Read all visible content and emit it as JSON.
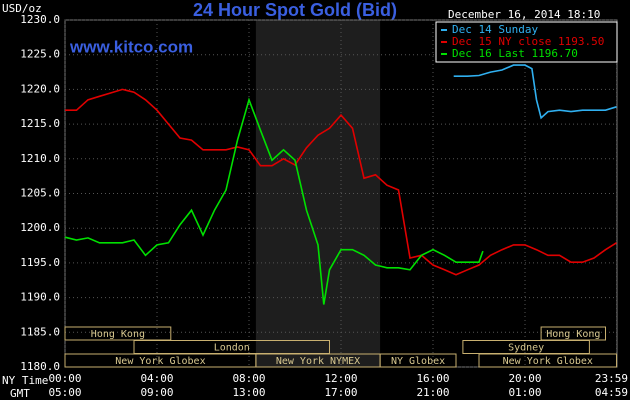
{
  "chart_data": {
    "type": "line",
    "title": "24 Hour Spot Gold (Bid)",
    "subtitle": "www.kitco.com",
    "timestamp": "December 16, 2014 18:10",
    "y_label": "USD/oz",
    "x_label": "NY Time",
    "x2_label": "GMT",
    "grid": true,
    "legend": "top-right",
    "xlim": [
      0,
      24
    ],
    "ylim": [
      1180,
      1230
    ],
    "yticks": [
      {
        "value": 1180,
        "label": "1180.0"
      },
      {
        "value": 1185,
        "label": "1185.0"
      },
      {
        "value": 1190,
        "label": "1190.0"
      },
      {
        "value": 1195,
        "label": "1195.0"
      },
      {
        "value": 1200,
        "label": "1200.0"
      },
      {
        "value": 1205,
        "label": "1205.0"
      },
      {
        "value": 1210,
        "label": "1210.0"
      },
      {
        "value": 1215,
        "label": "1215.0"
      },
      {
        "value": 1220,
        "label": "1220.0"
      },
      {
        "value": 1225,
        "label": "1225.0"
      },
      {
        "value": 1230,
        "label": "1230.0"
      }
    ],
    "xticks": [
      {
        "value": 0,
        "label": "00:00"
      },
      {
        "value": 4,
        "label": "04:00"
      },
      {
        "value": 8,
        "label": "08:00"
      },
      {
        "value": 12,
        "label": "12:00"
      },
      {
        "value": 16,
        "label": "16:00"
      },
      {
        "value": 20,
        "label": "20:00"
      },
      {
        "value": 23.98,
        "label": "23:59"
      }
    ],
    "x2ticks": [
      {
        "value": 0,
        "label": "05:00"
      },
      {
        "value": 4,
        "label": "09:00"
      },
      {
        "value": 8,
        "label": "13:00"
      },
      {
        "value": 12,
        "label": "17:00"
      },
      {
        "value": 16,
        "label": "21:00"
      },
      {
        "value": 20,
        "label": "01:00"
      },
      {
        "value": 23.98,
        "label": "04:59"
      }
    ],
    "sessions": [
      {
        "label": "Hong Kong",
        "row": 0,
        "start": 0,
        "end": 4.6
      },
      {
        "label": "Hong Kong",
        "row": 0,
        "start": 20.7,
        "end": 23.5
      },
      {
        "label": "London",
        "row": 1,
        "start": 3,
        "end": 11.5
      },
      {
        "label": "Sydney",
        "row": 1,
        "start": 17.3,
        "end": 22.8
      },
      {
        "label": "New York Globex",
        "row": 2,
        "start": 0,
        "end": 8.3
      },
      {
        "label": "New York NYMEX",
        "row": 2,
        "start": 8.3,
        "end": 13.7,
        "shade": true
      },
      {
        "label": "NY Globex",
        "row": 2,
        "start": 13.7,
        "end": 17
      },
      {
        "label": "New York Globex",
        "row": 2,
        "start": 18,
        "end": 23.98
      }
    ],
    "series": [
      {
        "name": "Dec 14 Sunday",
        "color": "#30b0f0",
        "x": [
          16.9,
          17.5,
          18,
          18.5,
          19,
          19.5,
          20,
          20.3,
          20.5,
          20.7,
          21,
          21.5,
          22,
          22.5,
          23,
          23.5,
          23.98
        ],
        "values": [
          1221.9,
          1221.9,
          1222,
          1222.5,
          1222.8,
          1223.5,
          1223.5,
          1223,
          1218.5,
          1215.9,
          1216.8,
          1217,
          1216.8,
          1217,
          1217,
          1217,
          1217.5
        ]
      },
      {
        "name": "Dec 15 NY close 1193.50",
        "color": "#e00000",
        "x": [
          0,
          0.5,
          1,
          1.5,
          2,
          2.5,
          3,
          3.5,
          4,
          4.5,
          5,
          5.5,
          6,
          6.5,
          7,
          7.5,
          8,
          8.5,
          9,
          9.5,
          10,
          10.5,
          11,
          11.5,
          12,
          12.5,
          13,
          13.5,
          14,
          14.5,
          15,
          15.5,
          16,
          16.5,
          17,
          17.5,
          18,
          18.5,
          19,
          19.5,
          20,
          20.5,
          21,
          21.5,
          22,
          22.5,
          23,
          23.5,
          23.98
        ],
        "values": [
          1217,
          1217,
          1218.5,
          1219,
          1219.5,
          1220,
          1219.6,
          1218.5,
          1217,
          1215,
          1213,
          1212.7,
          1211.3,
          1211.3,
          1211.3,
          1211.7,
          1211.3,
          1209,
          1209,
          1210,
          1209.1,
          1211.6,
          1213.4,
          1214.4,
          1216.3,
          1214.4,
          1207.2,
          1207.7,
          1206.2,
          1205.5,
          1195.7,
          1196.1,
          1194.7,
          1194,
          1193.3,
          1194,
          1194.7,
          1196.1,
          1196.9,
          1197.6,
          1197.6,
          1196.9,
          1196.1,
          1196.1,
          1195.1,
          1195.1,
          1195.7,
          1196.9,
          1197.9
        ]
      },
      {
        "name": "Dec 16 Last 1196.70",
        "color": "#00e000",
        "x": [
          0,
          0.5,
          1,
          1.5,
          2,
          2.5,
          3,
          3.5,
          4,
          4.5,
          5,
          5.5,
          6,
          6.5,
          7,
          7.5,
          8,
          8.5,
          9,
          9.5,
          10,
          10.5,
          11,
          11.25,
          11.5,
          12,
          12.5,
          13,
          13.5,
          14,
          14.5,
          15,
          15.5,
          16,
          16.5,
          17,
          17.5,
          18,
          18.17
        ],
        "values": [
          1198.7,
          1198.3,
          1198.6,
          1197.9,
          1197.9,
          1197.9,
          1198.3,
          1196.1,
          1197.6,
          1197.9,
          1200.5,
          1202.6,
          1199,
          1202.6,
          1205.5,
          1212.7,
          1218.5,
          1214.1,
          1209.8,
          1211.3,
          1209.8,
          1202.6,
          1197.6,
          1189,
          1194,
          1196.9,
          1196.9,
          1196.1,
          1194.7,
          1194.3,
          1194.3,
          1194,
          1196.1,
          1196.9,
          1196.1,
          1195.1,
          1195.1,
          1195.1,
          1196.7
        ]
      }
    ]
  }
}
